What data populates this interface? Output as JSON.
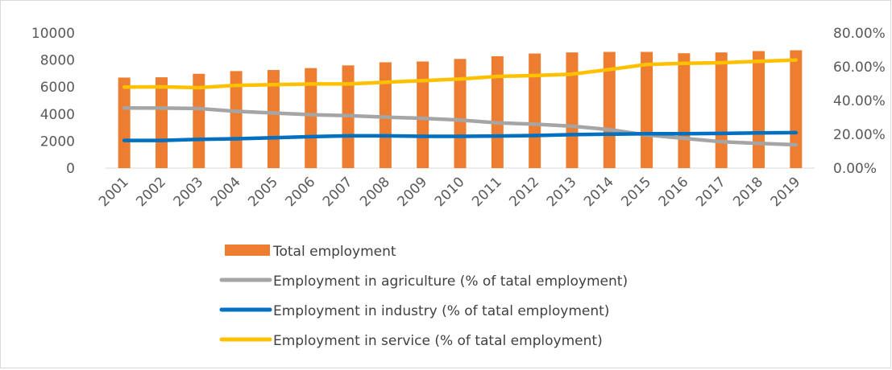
{
  "chart_data": {
    "type": "bar",
    "categories": [
      "2001",
      "2002",
      "2003",
      "2004",
      "2005",
      "2006",
      "2007",
      "2008",
      "2009",
      "2010",
      "2011",
      "2012",
      "2013",
      "2014",
      "2015",
      "2016",
      "2017",
      "2018",
      "2019"
    ],
    "y_left": {
      "min": 0,
      "max": 10000,
      "ticks": [
        "0",
        "2000",
        "4000",
        "6000",
        "8000",
        "10000"
      ]
    },
    "y_right": {
      "min": 0,
      "max": 80,
      "ticks": [
        "0.00%",
        "20.00%",
        "40.00%",
        "60.00%",
        "80.00%"
      ]
    },
    "grid": false,
    "legend_position": "bottom",
    "series": [
      {
        "name": "Total employment",
        "type": "bar",
        "axis": "left",
        "color": "#ed7d31",
        "values": [
          6700,
          6720,
          6980,
          7180,
          7260,
          7400,
          7600,
          7830,
          7890,
          8080,
          8280,
          8480,
          8560,
          8600,
          8600,
          8500,
          8560,
          8660,
          8720
        ]
      },
      {
        "name": "Employment in agriculture  (% of tatal employment)",
        "type": "line",
        "axis": "right",
        "color": "#a5a5a5",
        "values": [
          35.6,
          35.5,
          35.3,
          33.6,
          32.6,
          31.6,
          31.1,
          30.2,
          29.5,
          28.5,
          26.8,
          26.0,
          24.8,
          22.8,
          19.6,
          17.6,
          15.6,
          14.6,
          13.8
        ]
      },
      {
        "name": "Employment in industry (% of tatal employment)",
        "type": "line",
        "axis": "right",
        "color": "#0070c0",
        "values": [
          16.4,
          16.4,
          17.0,
          17.4,
          18.0,
          18.6,
          19.1,
          19.1,
          18.8,
          18.8,
          19.0,
          19.3,
          19.8,
          20.1,
          20.4,
          20.4,
          20.5,
          20.8,
          21.0
        ]
      },
      {
        "name": "Employment in service (% of tatal employment)",
        "type": "line",
        "axis": "right",
        "color": "#ffc000",
        "values": [
          48.0,
          48.1,
          47.6,
          49.0,
          49.4,
          49.8,
          49.8,
          50.8,
          51.8,
          52.7,
          54.3,
          54.8,
          55.6,
          58.4,
          61.4,
          62.0,
          62.4,
          63.2,
          64.0
        ]
      }
    ]
  }
}
